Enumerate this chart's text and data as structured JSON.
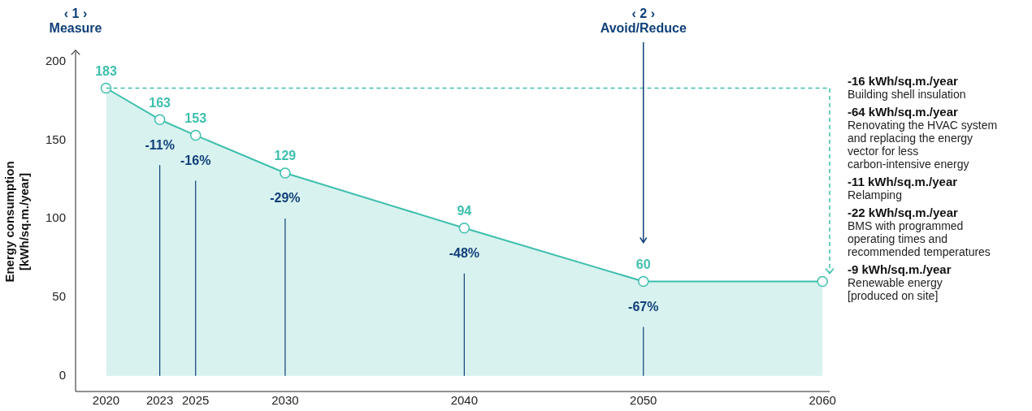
{
  "chart_data": {
    "type": "area",
    "ylabel": "Energy consumption\n[kWh/sq.m./year]",
    "x": [
      2020,
      2023,
      2025,
      2030,
      2040,
      2050,
      2060
    ],
    "series": [
      {
        "color": "#3dbfad",
        "values": [
          183,
          163,
          153,
          129,
          94,
          60,
          60
        ],
        "value_labels": [
          "183",
          "163",
          "153",
          "129",
          "94",
          "60",
          null
        ]
      }
    ],
    "xlim": [
      2018.3,
      2060.4
    ],
    "xticks": [
      2020,
      2023,
      2025,
      2030,
      2040,
      2050,
      2060
    ],
    "ylim": [
      -10,
      206
    ],
    "yticks": [
      0,
      50,
      100,
      150,
      200
    ],
    "marker": "circle",
    "grid": false,
    "legend": false,
    "ref_lines": [
      {
        "axis": "y",
        "value": 183,
        "color": "#3dbfad",
        "line_style": "dashed"
      }
    ],
    "annotations": [
      "‹ 1 ›\nMeasure",
      "‹ 2 ›\nAvoid/Reduce",
      {
        "text": "-11%",
        "x": 2023,
        "y": 163
      },
      {
        "text": "-16%",
        "x": 2025,
        "y": 153
      },
      {
        "text": "-29%",
        "x": 2030,
        "y": 129
      },
      {
        "text": "-48%",
        "x": 2040,
        "y": 94
      },
      {
        "text": "-67%",
        "x": 2050,
        "y": 60
      },
      "-16 kWh/sq.m./year\nBuilding shell insulation",
      "-64 kWh/sq.m./year\nRenovating the HVAC system\nand replacing the energy\nvector for less\ncarbon-intensive energy",
      "-11 kWh/sq.m./year\nRelamping",
      "-22 kWh/sq.m./year\nBMS with programmed\noperating times and\nrecommended temperatures",
      "-9 kWh/sq.m./year\nRenewable energy\n[produced on site]"
    ]
  }
}
